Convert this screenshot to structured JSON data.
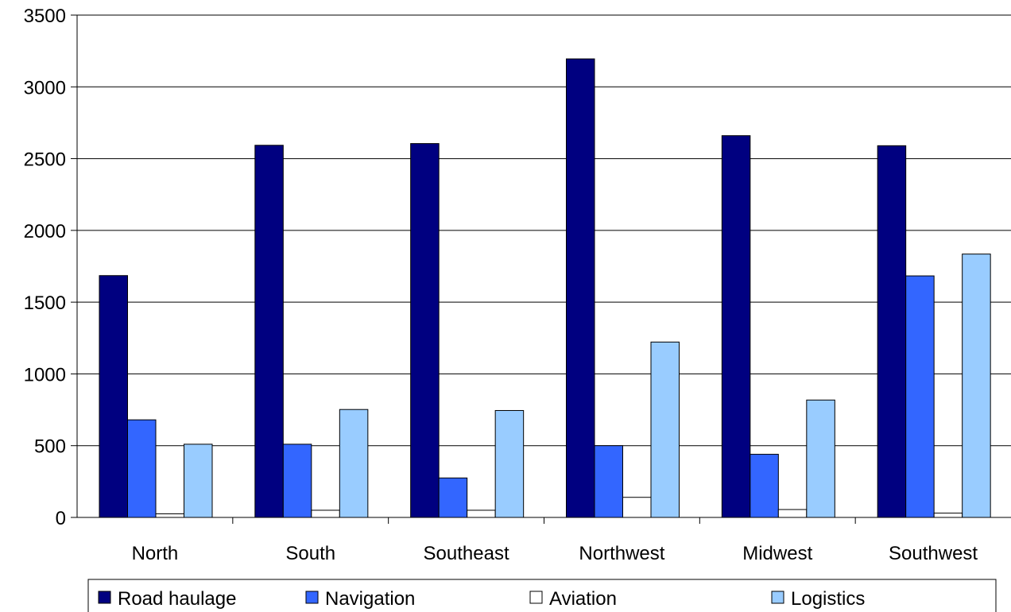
{
  "chart_data": {
    "type": "bar",
    "title": "",
    "xlabel": "",
    "ylabel": "",
    "categories": [
      "North",
      "South",
      "Southeast",
      "Northwest",
      "Midwest",
      "Southwest"
    ],
    "series": [
      {
        "name": "Road haulage",
        "color": "#000080",
        "values": [
          1685,
          2593,
          2605,
          3195,
          2660,
          2590
        ]
      },
      {
        "name": "Navigation",
        "color": "#3366FF",
        "values": [
          680,
          510,
          275,
          500,
          440,
          1683
        ]
      },
      {
        "name": "Aviation",
        "color": "#FFFFFF",
        "values": [
          25,
          50,
          50,
          140,
          55,
          30
        ]
      },
      {
        "name": "Logistics",
        "color": "#99CCFF",
        "values": [
          510,
          752,
          745,
          1222,
          818,
          1835
        ]
      }
    ],
    "ylim": [
      0,
      3500
    ],
    "yticks": [
      0,
      500,
      1000,
      1500,
      2000,
      2500,
      3000,
      3500
    ],
    "grid": true,
    "legend_position": "bottom"
  }
}
